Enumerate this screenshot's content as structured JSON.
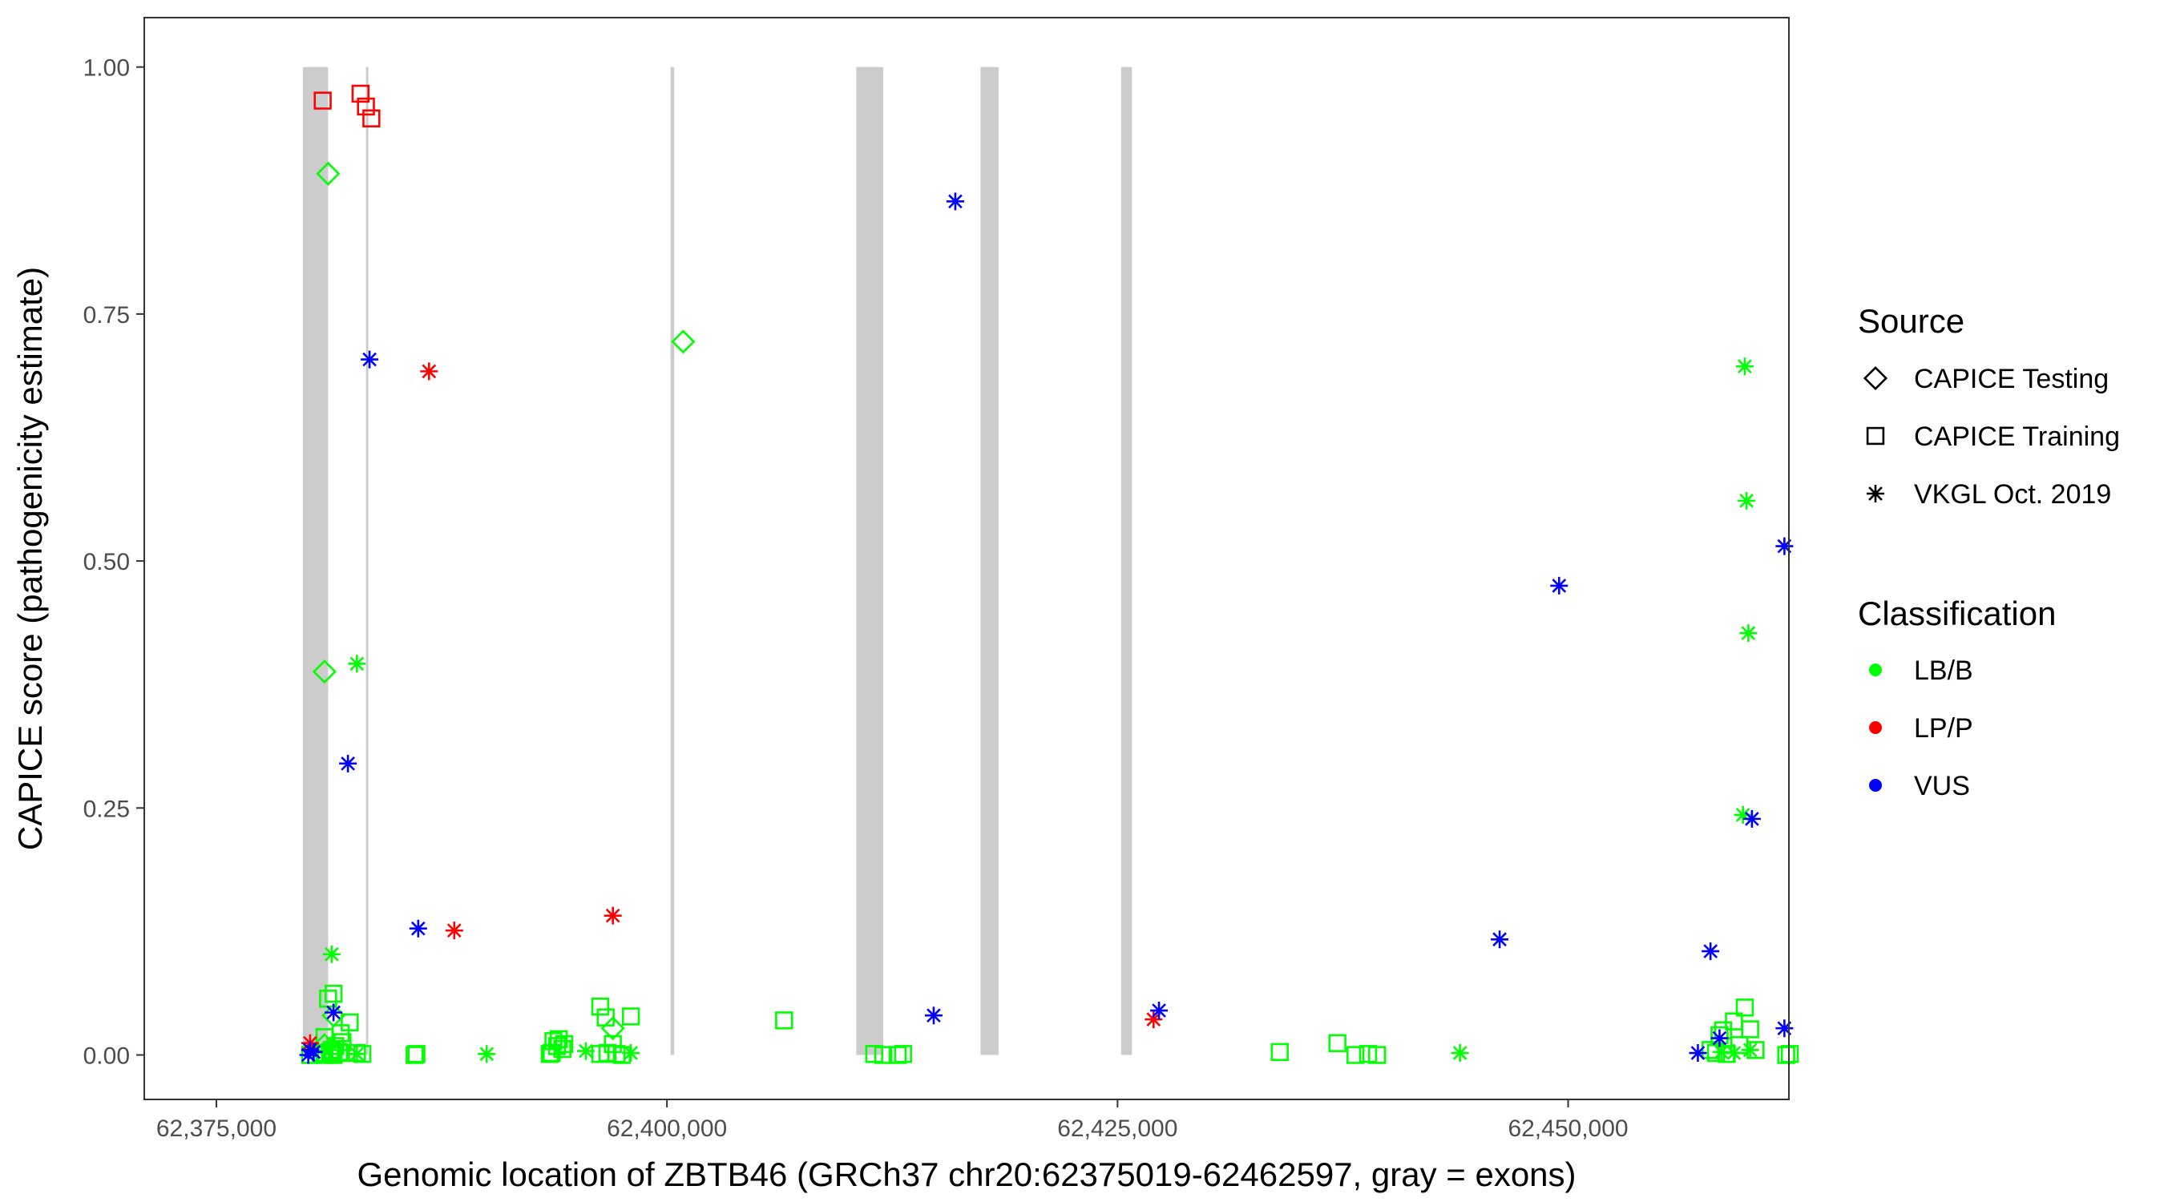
{
  "chart_data": {
    "type": "scatter",
    "title": "",
    "xlabel": "Genomic location of ZBTB46 (GRCh37 chr20:62375019-62462597, gray = exons)",
    "ylabel": "CAPICE score (pathogenicity estimate)",
    "xlim": [
      71000,
      162250
    ],
    "ylim": [
      -0.045,
      1.05
    ],
    "x_ticks": [
      75000,
      100000,
      125000,
      150000
    ],
    "x_tick_labels": [
      "62,375,000",
      "62,400,000",
      "62,425,000",
      "62,450,000"
    ],
    "y_ticks": [
      0,
      0.25,
      0.5,
      0.75,
      1
    ],
    "y_tick_labels": [
      "0.00",
      "0.25",
      "0.50",
      "0.75",
      "1.00"
    ],
    "x_offset_note": "x values are given as position minus 62,300,000",
    "grid": false,
    "exons": [
      [
        79800,
        81200
      ],
      [
        83300,
        83320
      ],
      [
        100200,
        100400
      ],
      [
        110500,
        112000
      ],
      [
        117400,
        118400
      ],
      [
        125200,
        125800
      ]
    ],
    "legend_position": "right",
    "legends": [
      {
        "title": "Source",
        "entries": [
          {
            "label": "CAPICE Testing",
            "shape": "diamond"
          },
          {
            "label": "CAPICE Training",
            "shape": "square"
          },
          {
            "label": "VKGL Oct. 2019",
            "shape": "asterisk"
          }
        ]
      },
      {
        "title": "Classification",
        "entries": [
          {
            "label": "LB/B",
            "color": "#00ff00"
          },
          {
            "label": "LP/P",
            "color": "#ff0000"
          },
          {
            "label": "VUS",
            "color": "#0000ff"
          }
        ]
      }
    ],
    "colors": {
      "LB/B": "#00ff00",
      "LP/P": "#ff0000",
      "VUS": "#0000ff"
    },
    "series": [
      {
        "name": "CAPICE Testing / LB/B",
        "shape": "diamond",
        "color": "#00ff00",
        "x": [
          81200,
          100900,
          81000,
          97000,
          81000,
          81500
        ],
        "y": [
          0.892,
          0.722,
          0.388,
          0.027,
          0.01,
          0.04
        ]
      },
      {
        "name": "CAPICE Training / LP/P",
        "shape": "square",
        "color": "#ff0000",
        "x": [
          80900,
          83000,
          83300,
          83600
        ],
        "y": [
          0.966,
          0.973,
          0.96,
          0.948
        ]
      },
      {
        "name": "CAPICE Training / LB/B",
        "shape": "square",
        "color": "#00ff00",
        "x": [
          80200,
          80800,
          81000,
          81300,
          81500,
          81800,
          81200,
          81500,
          81900,
          82400,
          82800,
          83100,
          86000,
          86100,
          93500,
          93700,
          94000,
          94300,
          96300,
          96600,
          97000,
          97200,
          98000,
          106500,
          111500,
          112000,
          112800,
          113100,
          134000,
          137200,
          138200,
          138900,
          139400,
          157900,
          158200,
          158400,
          158600,
          158800,
          159200,
          159500,
          159800,
          160100,
          160400,
          162100,
          162300,
          81000,
          81400,
          81600,
          81800,
          82000,
          93600,
          93900,
          94200,
          96300,
          96700,
          97500
        ],
        "y": [
          0.0,
          0.002,
          0.0,
          0.003,
          0.0,
          0.002,
          0.057,
          0.062,
          0.022,
          0.033,
          0.002,
          0.001,
          0.0,
          0.001,
          0.001,
          0.014,
          0.016,
          0.011,
          0.049,
          0.038,
          0.011,
          0.001,
          0.039,
          0.035,
          0.001,
          0.0,
          0.0,
          0.001,
          0.003,
          0.012,
          0.0,
          0.001,
          0.0,
          0.005,
          0.002,
          0.02,
          0.025,
          0.001,
          0.034,
          0.01,
          0.048,
          0.026,
          0.005,
          0.0,
          0.001,
          0.018,
          0.005,
          0.009,
          0.003,
          0.013,
          0.002,
          0.009,
          0.006,
          0.001,
          0.002,
          0.0
        ]
      },
      {
        "name": "VKGL Oct. 2019 / LB/B",
        "shape": "asterisk",
        "color": "#00ff00",
        "x": [
          81400,
          82800,
          159800,
          159900,
          160000,
          159700,
          160100,
          90000,
          95500,
          98000,
          144000,
          82800,
          158500,
          159200
        ],
        "y": [
          0.102,
          0.396,
          0.697,
          0.561,
          0.427,
          0.243,
          0.005,
          0.001,
          0.004,
          0.002,
          0.002,
          0.001,
          0.003,
          0.002
        ],
        "marker_style": "asterisk"
      },
      {
        "name": "VKGL Oct. 2019 / LP/P",
        "shape": "asterisk",
        "color": "#ff0000",
        "x": [
          86800,
          88200,
          97000,
          127000,
          80200
        ],
        "y": [
          0.692,
          0.126,
          0.141,
          0.036,
          0.012
        ]
      },
      {
        "name": "VKGL Oct. 2019 / VUS",
        "shape": "asterisk",
        "color": "#0000ff",
        "x": [
          116000,
          83500,
          149500,
          162000,
          82300,
          86200,
          81500,
          114800,
          127300,
          146200,
          157900,
          160200,
          162000,
          158400,
          80200,
          80400,
          80100,
          157200
        ],
        "y": [
          0.864,
          0.704,
          0.475,
          0.515,
          0.295,
          0.128,
          0.043,
          0.04,
          0.045,
          0.117,
          0.105,
          0.239,
          0.027,
          0.017,
          0.005,
          0.003,
          0.0,
          0.002
        ]
      }
    ]
  }
}
